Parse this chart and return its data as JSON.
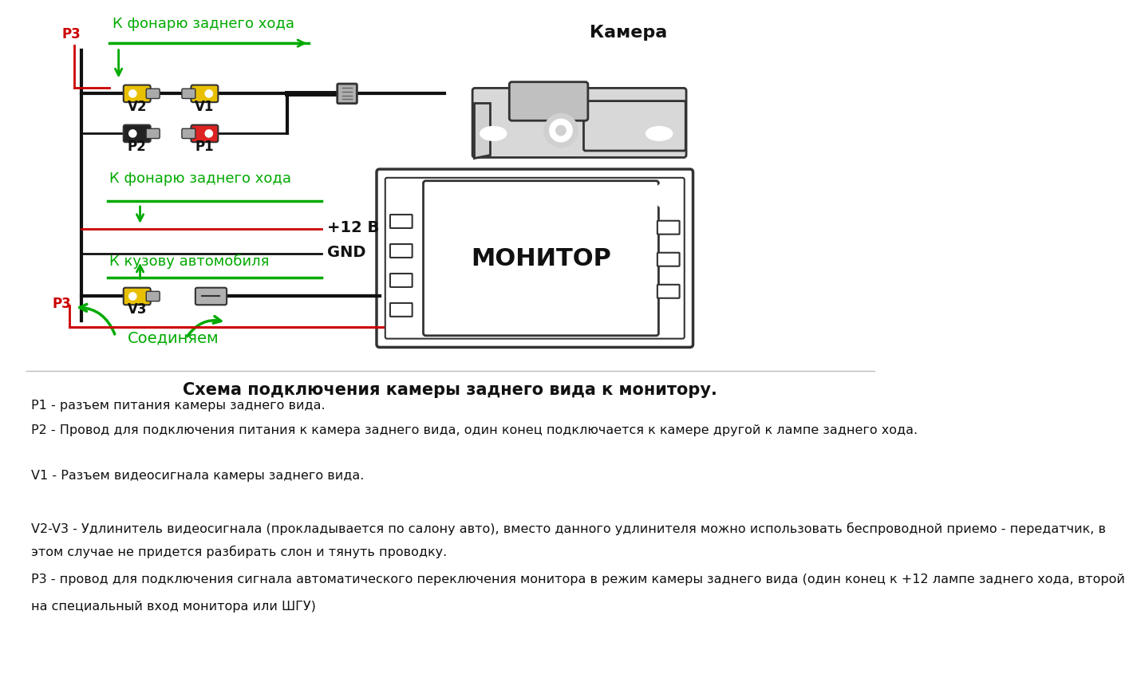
{
  "bg_color": "#ffffff",
  "title_text": "Схема подключения камеры заднего вида к монитору.",
  "desc1": "P1 - разъем питания камеры заднего вида.",
  "desc2": "P2 - Провод для подключения питания к камера заднего вида, один конец подключается к камере другой к лампе заднего хода.",
  "desc3": "V1 - Разъем видеосигнала камеры заднего вида.",
  "desc4a": "V2-V3 - Удлинитель видеосигнала (прокладывается по салону авто), вместо данного удлинителя можно использовать беспроводной приемо - передатчик, в",
  "desc4b": "этом случае не придется разбирать слон и тянуть проводку.",
  "desc5a": "P3 - провод для подключения сигнала автоматического переключения монитора в режим камеры заднего вида (один конец к +12 лампе заднего хода, второй",
  "desc5b": "на специальный вход монитора или ШГУ)",
  "green_color": "#00aa00",
  "red_color": "#cc0000",
  "black_color": "#111111",
  "yellow_color": "#e8c000",
  "gray_color": "#888888",
  "light_gray": "#cccccc",
  "dark_gray": "#333333",
  "camera_label": "Камера",
  "monitor_label": "МОНИТОР",
  "label_v2": "V2",
  "label_v1": "V1",
  "label_p2": "P2",
  "label_p1": "P1",
  "label_v3": "V3",
  "label_p3": "P3",
  "text_fonary1": "К фонарю заднего хода",
  "text_fonary2": "К фонарю заднего хода",
  "text_kuzov": "К кузову автомобиля",
  "text_12v": "+12 В",
  "text_gnd": "GND",
  "text_soed": "Соединяем"
}
